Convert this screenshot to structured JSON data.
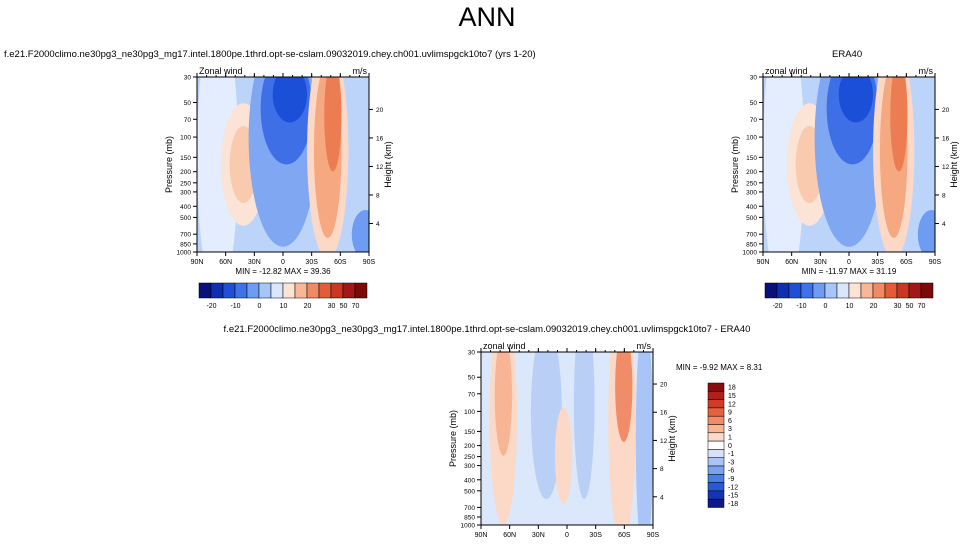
{
  "title": "ANN",
  "colors": {
    "cold_core": "#1c4fd8",
    "cold_mid": "#5b8ef0",
    "cold_light": "#bcd4fa",
    "warm_light": "#fbd0b8",
    "warm_mid": "#f1875c",
    "warm_core": "#e55a3a"
  },
  "chart_data": [
    {
      "type": "heatmap",
      "panel": "top-left",
      "case_title": "f.e21.F2000climo.ne30pg3_ne30pg3_mg17.intel.1800pe.1thrd.opt-se-cslam.09032019.chey.ch001.uvlimspgck10to7 (yrs 1-20)",
      "left_label": "Zonal wind",
      "units": "m/s",
      "xlabel": "",
      "ylabel": "Pressure (mb)",
      "y2label": "Height (km)",
      "x_ticks": [
        "90N",
        "60N",
        "30N",
        "0",
        "30S",
        "60S",
        "90S"
      ],
      "y_ticks": [
        "30",
        "50",
        "70",
        "100",
        "150",
        "200",
        "250",
        "300",
        "400",
        "500",
        "700",
        "850",
        "1000"
      ],
      "y2_ticks": [
        "20",
        "16",
        "12",
        "8",
        "4"
      ],
      "stats": "MIN = -12.82   MAX =  39.36",
      "min": -12.82,
      "max": 39.36,
      "colorbar_levels": [
        "-20",
        "-10",
        "0",
        "10",
        "20",
        "30",
        "50",
        "70"
      ]
    },
    {
      "type": "heatmap",
      "panel": "top-right",
      "case_title": "ERA40",
      "left_label": "zonal wind",
      "units": "m/s",
      "xlabel": "",
      "ylabel": "Pressure (mb)",
      "y2label": "Height (km)",
      "x_ticks": [
        "90N",
        "60N",
        "30N",
        "0",
        "30S",
        "60S",
        "90S"
      ],
      "y_ticks": [
        "30",
        "50",
        "70",
        "100",
        "150",
        "200",
        "250",
        "300",
        "400",
        "500",
        "700",
        "850",
        "1000"
      ],
      "y2_ticks": [
        "20",
        "16",
        "12",
        "8",
        "4"
      ],
      "stats": "MIN = -11.97   MAX =  31.19",
      "min": -11.97,
      "max": 31.19,
      "colorbar_levels": [
        "-20",
        "-10",
        "0",
        "10",
        "20",
        "30",
        "50",
        "70"
      ]
    },
    {
      "type": "heatmap",
      "panel": "bottom",
      "case_title": "f.e21.F2000climo.ne30pg3_ne30pg3_mg17.intel.1800pe.1thrd.opt-se-cslam.09032019.chey.ch001.uvlimspgck10to7 - ERA40",
      "left_label": "zonal wind",
      "units": "m/s",
      "xlabel": "",
      "ylabel": "Pressure (mb)",
      "y2label": "Height (km)",
      "x_ticks": [
        "90N",
        "60N",
        "30N",
        "0",
        "30S",
        "60S",
        "90S"
      ],
      "y_ticks": [
        "30",
        "50",
        "70",
        "100",
        "150",
        "200",
        "250",
        "300",
        "400",
        "500",
        "700",
        "850",
        "1000"
      ],
      "y2_ticks": [
        "20",
        "16",
        "12",
        "8",
        "4"
      ],
      "stats": "MIN =  -9.92   MAX =   8.31",
      "min": -9.92,
      "max": 8.31,
      "colorbar_levels": [
        "18",
        "15",
        "12",
        "9",
        "6",
        "3",
        "1",
        "0",
        "-1",
        "-3",
        "-6",
        "-9",
        "-12",
        "-15",
        "-18"
      ]
    }
  ]
}
